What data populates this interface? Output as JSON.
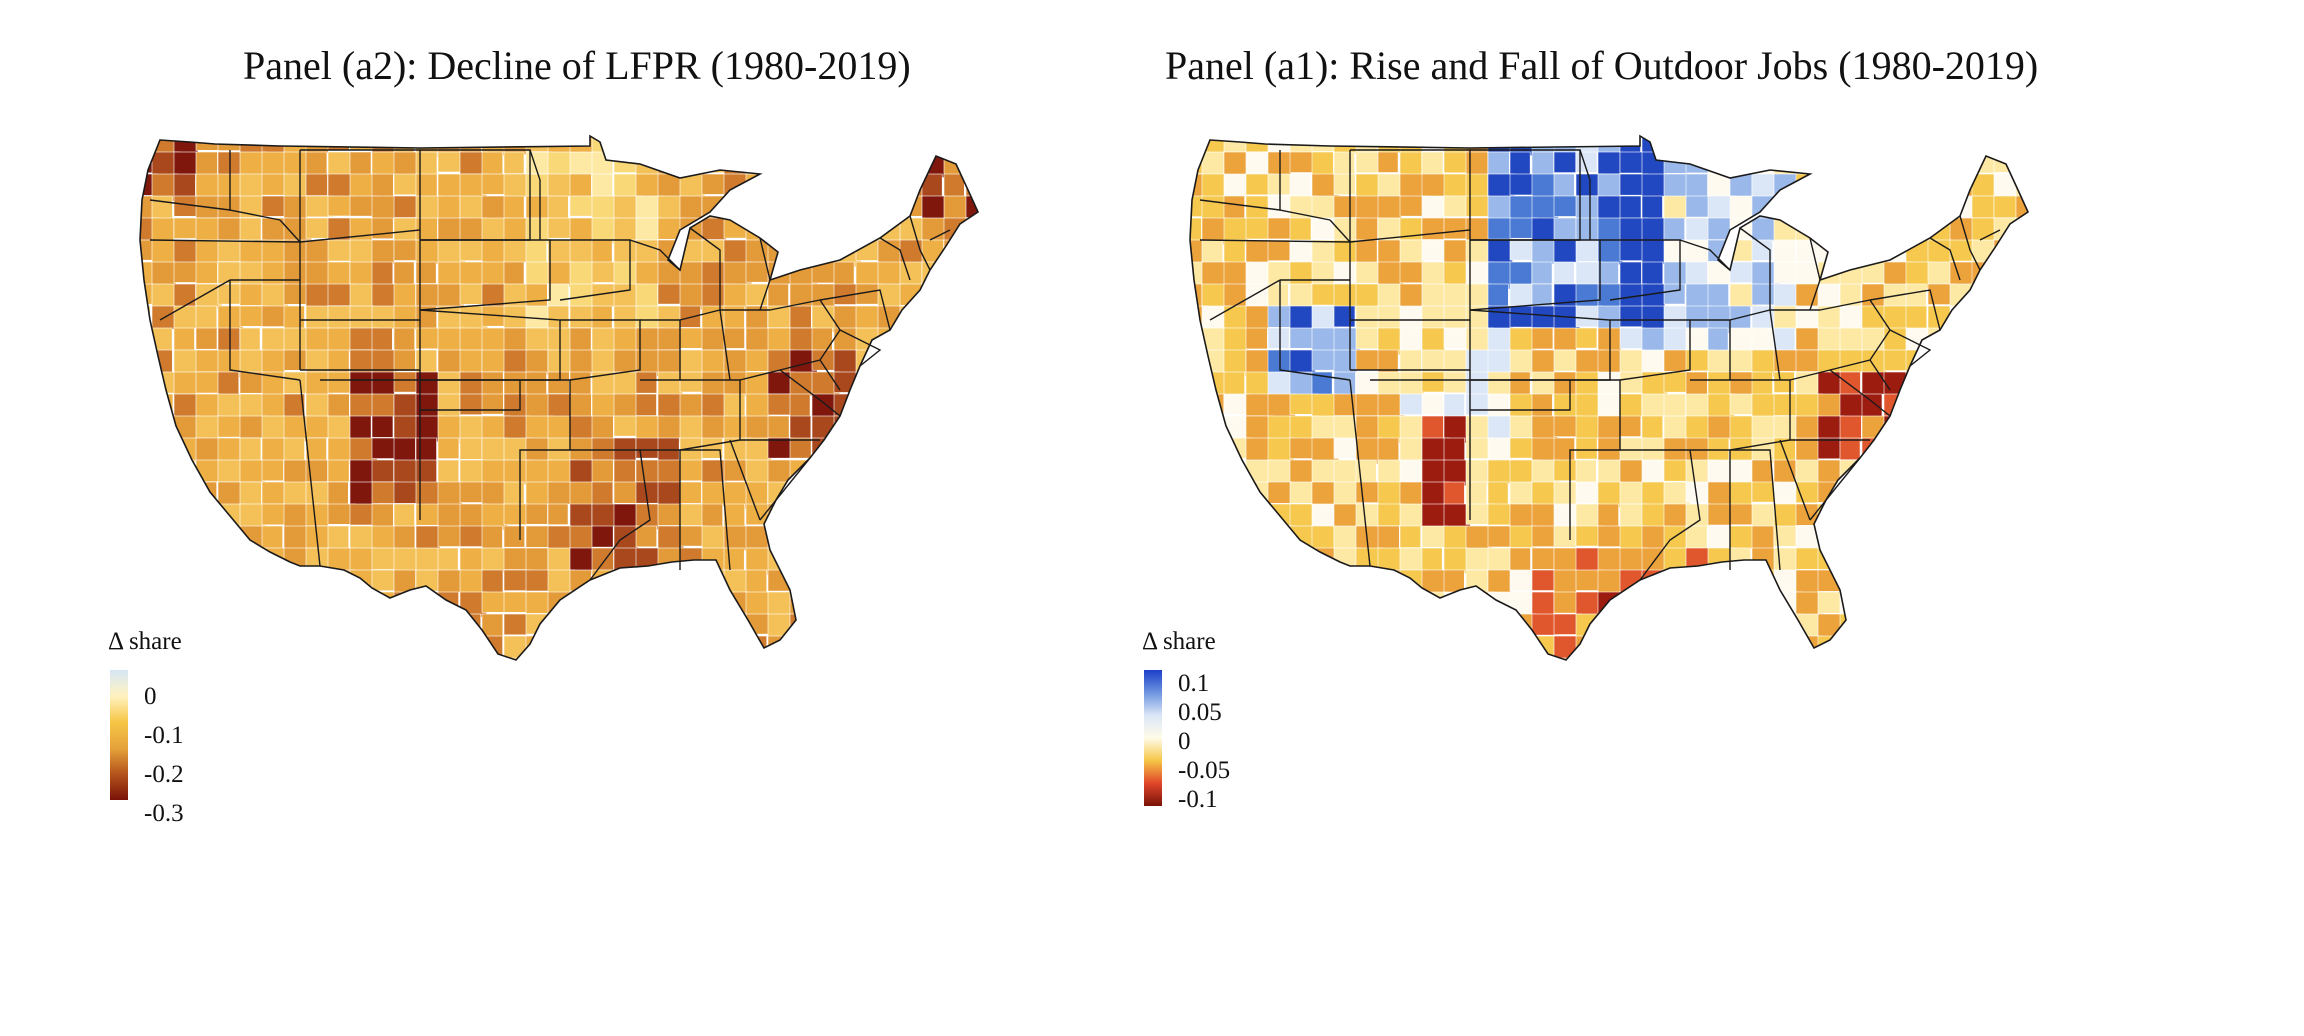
{
  "panels": [
    {
      "title": "Panel (a2): Decline of LFPR (1980-2019)",
      "legend": {
        "title": "Δ share",
        "ticks": [
          "0",
          "-0.1",
          "-0.2",
          "-0.3"
        ],
        "colors": [
          "#d6e6f5",
          "#fff2c0",
          "#f6c646",
          "#e6a23a",
          "#b4541c",
          "#7a1208"
        ]
      },
      "palette": [
        "#fde9a4",
        "#f9d877",
        "#f4c158",
        "#eeaf45",
        "#e39a38",
        "#cf7a2c",
        "#a9481c",
        "#7f170c"
      ]
    },
    {
      "title": "Panel (a1): Rise and Fall of Outdoor Jobs (1980-2019)",
      "legend": {
        "title": "Δ share",
        "ticks": [
          "0.1",
          "0.05",
          "0",
          "-0.05",
          "-0.1"
        ],
        "colors": [
          "#1d3fc9",
          "#6e95e0",
          "#dbe6f7",
          "#fffbe8",
          "#f6c646",
          "#e0462a",
          "#7a1208"
        ]
      },
      "palette": [
        "#2148c0",
        "#4a7ad4",
        "#9ab8ea",
        "#dbe6f7",
        "#fffaf0",
        "#fde9a4",
        "#f6c94e",
        "#eda33c",
        "#e0562d",
        "#9c1c10"
      ]
    }
  ]
}
